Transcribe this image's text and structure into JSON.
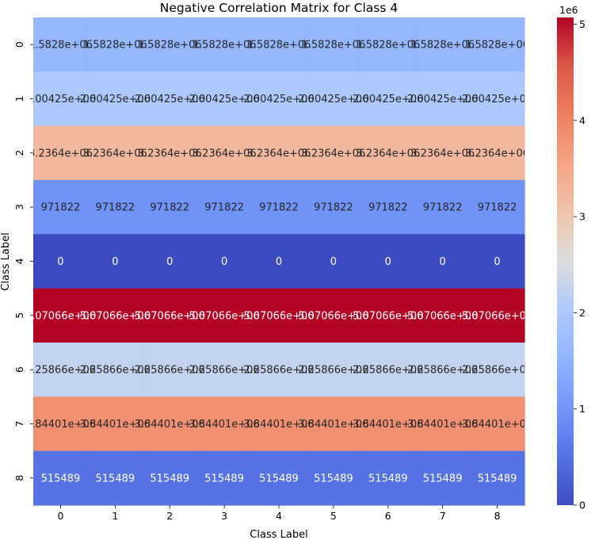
{
  "chart_data": {
    "type": "heatmap",
    "title": "Negative Correlation Matrix for Class 4",
    "xlabel": "Class Label",
    "ylabel": "Class Label",
    "x_categories": [
      "0",
      "1",
      "2",
      "3",
      "4",
      "5",
      "6",
      "7",
      "8"
    ],
    "y_categories": [
      "0",
      "1",
      "2",
      "3",
      "4",
      "5",
      "6",
      "7",
      "8"
    ],
    "row_values": [
      1582800,
      2004250,
      3236400,
      971822,
      0,
      5070660,
      2258660,
      3844010,
      515489
    ],
    "cell_labels": [
      "1.5828e+06",
      "2.00425e+06",
      "3.2364e+06",
      "971822",
      "0",
      "5.07066e+06",
      "2.25866e+06",
      "3.84401e+06",
      "515489"
    ],
    "colorbar": {
      "min": 0,
      "max": 5070660,
      "ticks": [
        0,
        1,
        2,
        3,
        4,
        5
      ],
      "tick_labels": [
        "0",
        "1",
        "2",
        "3",
        "4",
        "5"
      ],
      "offset_label": "1e6",
      "colormap": "coolwarm"
    }
  }
}
